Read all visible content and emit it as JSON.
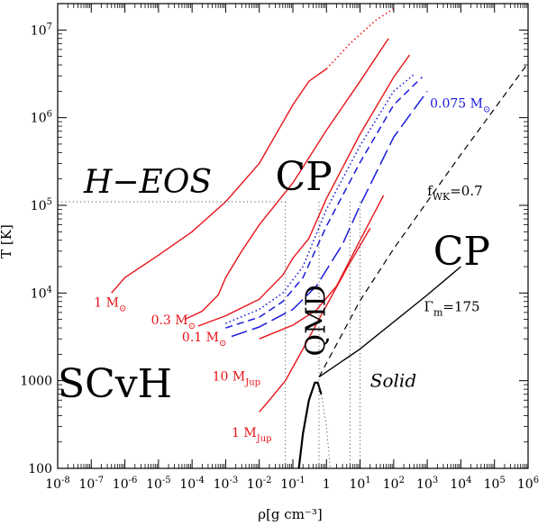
{
  "chart_data": {
    "type": "line",
    "xlabel": "ρ[g cm⁻³]",
    "ylabel": "T [K]",
    "x_scale": "log",
    "y_scale": "log",
    "xlim": [
      1e-08,
      1000000.0
    ],
    "ylim": [
      100,
      20000000
    ],
    "x_ticks": [
      {
        "v": 1e-08,
        "base": "10",
        "exp": "-8"
      },
      {
        "v": 1e-07,
        "base": "10",
        "exp": "-7"
      },
      {
        "v": 1e-06,
        "base": "10",
        "exp": "-6"
      },
      {
        "v": 1e-05,
        "base": "10",
        "exp": "-5"
      },
      {
        "v": 0.0001,
        "base": "10",
        "exp": "-4"
      },
      {
        "v": 0.001,
        "base": "10",
        "exp": "-3"
      },
      {
        "v": 0.01,
        "base": "10",
        "exp": "-2"
      },
      {
        "v": 0.1,
        "base": "10",
        "exp": "-1"
      },
      {
        "v": 1,
        "base": "1",
        "exp": ""
      },
      {
        "v": 10,
        "base": "10",
        "exp": "1"
      },
      {
        "v": 100,
        "base": "10",
        "exp": "2"
      },
      {
        "v": 1000,
        "base": "10",
        "exp": "3"
      },
      {
        "v": 10000,
        "base": "10",
        "exp": "4"
      },
      {
        "v": 100000,
        "base": "10",
        "exp": "5"
      },
      {
        "v": 1000000,
        "base": "10",
        "exp": "6"
      }
    ],
    "y_ticks": [
      {
        "v": 100,
        "base": "100",
        "exp": ""
      },
      {
        "v": 1000,
        "base": "1000",
        "exp": ""
      },
      {
        "v": 10000,
        "base": "10",
        "exp": "4"
      },
      {
        "v": 100000,
        "base": "10",
        "exp": "5"
      },
      {
        "v": 1000000,
        "base": "10",
        "exp": "6"
      },
      {
        "v": 10000000,
        "base": "10",
        "exp": "7"
      }
    ],
    "colors": {
      "red": "#e8141a",
      "blue": "#1a1adc",
      "black": "#000000",
      "dotted": "#555555"
    },
    "series": [
      {
        "name": "1 M☉",
        "color": "red",
        "style": "solid",
        "points": [
          [
            4e-07,
            10000
          ],
          [
            1e-06,
            15000
          ],
          [
            1e-05,
            27000
          ],
          [
            0.0001,
            50000
          ],
          [
            0.001,
            110000
          ],
          [
            0.01,
            300000
          ],
          [
            0.1,
            1400000
          ],
          [
            0.3,
            2600000
          ],
          [
            1,
            3600000
          ]
        ]
      },
      {
        "name": "",
        "color": "red",
        "style": "dotted",
        "points": [
          [
            1,
            3600000
          ],
          [
            5,
            7000000
          ],
          [
            30,
            13000000
          ],
          [
            100,
            17500000
          ]
        ]
      },
      {
        "name": "0.3 M☉",
        "color": "red",
        "style": "solid",
        "points": [
          [
            6e-05,
            5000
          ],
          [
            0.0002,
            6200
          ],
          [
            0.0006,
            9500
          ],
          [
            0.001,
            15000
          ],
          [
            0.003,
            30000
          ],
          [
            0.01,
            60000
          ],
          [
            0.1,
            180000
          ],
          [
            1,
            720000
          ],
          [
            10,
            2600000
          ],
          [
            70,
            8000000
          ]
        ]
      },
      {
        "name": "0.1 M☉",
        "color": "red",
        "style": "solid",
        "points": [
          [
            0.00015,
            4200
          ],
          [
            0.001,
            5500
          ],
          [
            0.01,
            8500
          ],
          [
            0.05,
            16000
          ],
          [
            0.1,
            25000
          ],
          [
            0.3,
            42000
          ],
          [
            1,
            120000
          ],
          [
            10,
            650000
          ],
          [
            100,
            2900000
          ],
          [
            300,
            5200000
          ]
        ]
      },
      {
        "name": "0.075 M☉",
        "color": "blue",
        "style": "dotted",
        "points": [
          [
            0.001,
            4500
          ],
          [
            0.01,
            6500
          ],
          [
            0.05,
            10000
          ],
          [
            0.2,
            20000
          ],
          [
            1,
            90000
          ],
          [
            10,
            480000
          ],
          [
            100,
            2000000
          ],
          [
            400,
            3100000
          ]
        ]
      },
      {
        "name": "",
        "color": "blue",
        "style": "short-dash",
        "points": [
          [
            0.001,
            4000
          ],
          [
            0.01,
            5300
          ],
          [
            0.05,
            8000
          ],
          [
            0.2,
            15000
          ],
          [
            1,
            58000
          ],
          [
            10,
            310000
          ],
          [
            100,
            1400000
          ],
          [
            700,
            2900000
          ]
        ]
      },
      {
        "name": "",
        "color": "blue",
        "style": "long-dash",
        "points": [
          [
            0.0015,
            3200
          ],
          [
            0.01,
            4100
          ],
          [
            0.1,
            6500
          ],
          [
            0.5,
            12000
          ],
          [
            3,
            36000
          ],
          [
            10,
            100000
          ],
          [
            100,
            600000
          ],
          [
            1000,
            2000000
          ]
        ]
      },
      {
        "name": "10 M_Jup",
        "color": "red",
        "style": "solid",
        "points": [
          [
            0.01,
            3000
          ],
          [
            0.1,
            4300
          ],
          [
            0.5,
            6400
          ],
          [
            2,
            12000
          ],
          [
            10,
            40000
          ],
          [
            50,
            130000
          ]
        ]
      },
      {
        "name": "1 M_Jup",
        "color": "red",
        "style": "solid",
        "points": [
          [
            0.01,
            440
          ],
          [
            0.02,
            600
          ],
          [
            0.06,
            1000
          ],
          [
            0.2,
            2300
          ],
          [
            1,
            7200
          ],
          [
            4,
            19000
          ],
          [
            20,
            55000
          ]
        ]
      },
      {
        "name": "f_WK=0.7",
        "color": "black",
        "style": "dashed",
        "points": [
          [
            0.6,
            1100
          ],
          [
            10,
            8200
          ],
          [
            100,
            32000
          ],
          [
            10000,
            380000
          ],
          [
            1000000,
            4200000
          ]
        ]
      },
      {
        "name": "Γm=175",
        "color": "black",
        "style": "solid",
        "points": [
          [
            0.6,
            1100
          ],
          [
            10,
            2300
          ],
          [
            1000,
            9500
          ],
          [
            10000,
            20000
          ]
        ]
      },
      {
        "name": "",
        "color": "black",
        "style": "solid-thick",
        "points": [
          [
            0.15,
            100
          ],
          [
            0.2,
            250
          ],
          [
            0.3,
            600
          ],
          [
            0.45,
            950
          ],
          [
            0.55,
            950
          ],
          [
            0.7,
            700
          ]
        ]
      },
      {
        "name": "",
        "color": "black",
        "style": "dotted-thin",
        "points": [
          [
            0.7,
            700
          ],
          [
            1,
            300
          ],
          [
            1.3,
            100
          ]
        ]
      },
      {
        "name": "",
        "color": "black",
        "style": "dotted-thin",
        "points": [
          [
            0.06,
            110000
          ],
          [
            0.06,
            100
          ]
        ]
      },
      {
        "name": "",
        "color": "black",
        "style": "dotted-thin",
        "points": [
          [
            1e-08,
            110000
          ],
          [
            0.06,
            110000
          ]
        ]
      },
      {
        "name": "",
        "color": "black",
        "style": "dotted-thin",
        "points": [
          [
            0.6,
            110000
          ],
          [
            0.6,
            100
          ]
        ]
      },
      {
        "name": "",
        "color": "black",
        "style": "dotted-thin",
        "points": [
          [
            5,
            110000
          ],
          [
            5,
            100
          ]
        ]
      },
      {
        "name": "",
        "color": "black",
        "style": "dotted-thin",
        "points": [
          [
            10,
            110000
          ],
          [
            10,
            100
          ]
        ]
      }
    ],
    "annotations": [
      {
        "id": "h-eos",
        "text": "H−EOS",
        "x": 6e-08,
        "y": 140000,
        "size": 36,
        "italic": true,
        "color": "black",
        "rot": 0
      },
      {
        "id": "cp-upper",
        "text": "CP",
        "x": 0.03,
        "y": 150000,
        "size": 44,
        "italic": false,
        "color": "black",
        "rot": 0
      },
      {
        "id": "cp-lower",
        "text": "CP",
        "x": 1500,
        "y": 21000,
        "size": 44,
        "italic": false,
        "color": "black",
        "rot": 0
      },
      {
        "id": "scvh",
        "text": "SCvH",
        "x": 1e-08,
        "y": 650,
        "size": 44,
        "italic": false,
        "color": "black",
        "rot": 0
      },
      {
        "id": "solid",
        "text": "Solid",
        "x": 20,
        "y": 850,
        "size": 20,
        "italic": true,
        "color": "black",
        "rot": 0
      },
      {
        "id": "qmd",
        "text": "QMD",
        "x": 0.9,
        "y": 1900,
        "size": 30,
        "italic": false,
        "color": "black",
        "rot": -90
      },
      {
        "id": "m-1sun",
        "text": "1 M",
        "sub": "⊙",
        "x": 1.2e-07,
        "y": 7000,
        "size": 14,
        "italic": false,
        "color": "red",
        "rot": 0
      },
      {
        "id": "m-03sun",
        "text": "0.3 M",
        "sub": "⊙",
        "x": 6e-06,
        "y": 4400,
        "size": 14,
        "italic": false,
        "color": "red",
        "rot": 0
      },
      {
        "id": "m-01sun",
        "text": "0.1 M",
        "sub": "⊙",
        "x": 5e-05,
        "y": 2800,
        "size": 14,
        "italic": false,
        "color": "red",
        "rot": 0
      },
      {
        "id": "m-0075sun",
        "text": "0.075 M",
        "sub": "⊙",
        "x": 1200,
        "y": 1300000,
        "size": 14,
        "italic": false,
        "color": "blue",
        "rot": 0
      },
      {
        "id": "m-10jup",
        "text": "10 M",
        "sub": "Jup",
        "x": 0.0004,
        "y": 1000,
        "size": 14,
        "italic": false,
        "color": "red",
        "rot": 0
      },
      {
        "id": "m-1jup",
        "text": "1 M",
        "sub": "Jup",
        "x": 0.0015,
        "y": 230,
        "size": 14,
        "italic": false,
        "color": "red",
        "rot": 0
      },
      {
        "id": "fwk",
        "text": "f",
        "sub": "WK",
        "after": "=0.7",
        "x": 1000,
        "y": 130000,
        "size": 15,
        "italic": false,
        "color": "black",
        "rot": 0
      },
      {
        "id": "gamma",
        "text": "Γ",
        "sub": "m",
        "after": "=175",
        "x": 800,
        "y": 6200,
        "size": 15,
        "italic": false,
        "color": "black",
        "rot": 0
      }
    ]
  }
}
